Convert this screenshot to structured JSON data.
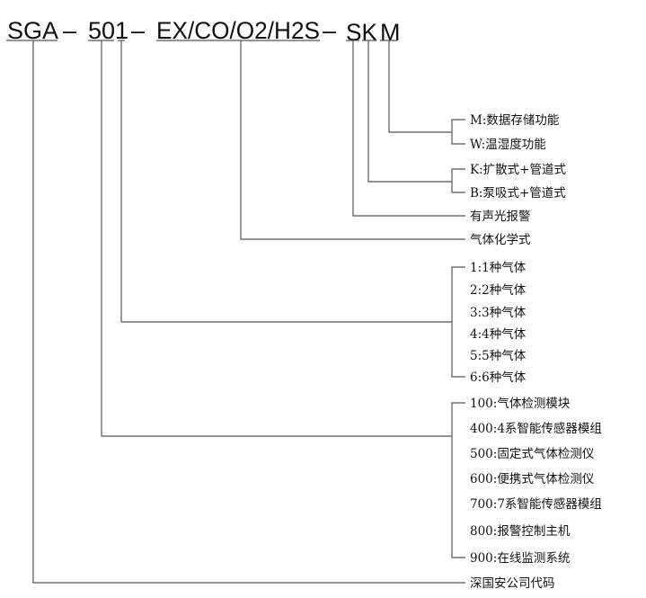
{
  "model_code": {
    "parts": [
      "SGA",
      "–",
      "501",
      "–",
      "EX/CO/O2/H2S",
      "–",
      "SK",
      "M"
    ]
  },
  "branches": {
    "storage": [
      "M:数据存储功能",
      "W:温湿度功能"
    ],
    "sampling": [
      "K:扩散式+管道式",
      "B:泵吸式+管道式"
    ],
    "alarm": "有声光报警",
    "gas_formula": "气体化学式",
    "gas_count": [
      "1:1种气体",
      "2:2种气体",
      "3:3种气体",
      "4:4种气体",
      "5:5种气体",
      "6:6种气体"
    ],
    "series": [
      "100:气体检测模块",
      "400:4系智能传感器模组",
      "500:固定式气体检测仪",
      "600:便携式气体检测仪",
      "700:7系智能传感器模组",
      "800:报警控制主机",
      "900:在线监测系统"
    ],
    "company": "深国安公司代码"
  }
}
